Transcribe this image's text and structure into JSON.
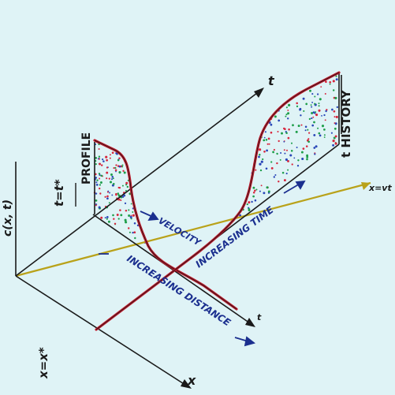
{
  "colors": {
    "background": "#dff3f6",
    "axis": "#1a1a1a",
    "curve": "#c0182a",
    "annotation": "#1b2f8f",
    "characteristic": "#b9a21a",
    "dot_red": "#d7263d",
    "dot_blue": "#2a47b8",
    "dot_green": "#1e9e4a"
  },
  "labels": {
    "axis_t": "t",
    "axis_x": "x",
    "axis_c": "c(x, t)",
    "axis_t_front": "t",
    "x_eq_vt": "x=vt",
    "t_eq_tstar": "t=t*",
    "x_eq_xstar": "x=x*",
    "profile": "PROFILE",
    "history": "t HISTORY",
    "velocity": "VELOCITY",
    "increasing_time": "INCREASING TIME",
    "increasing_distance": "INCREASING DISTANCE"
  }
}
